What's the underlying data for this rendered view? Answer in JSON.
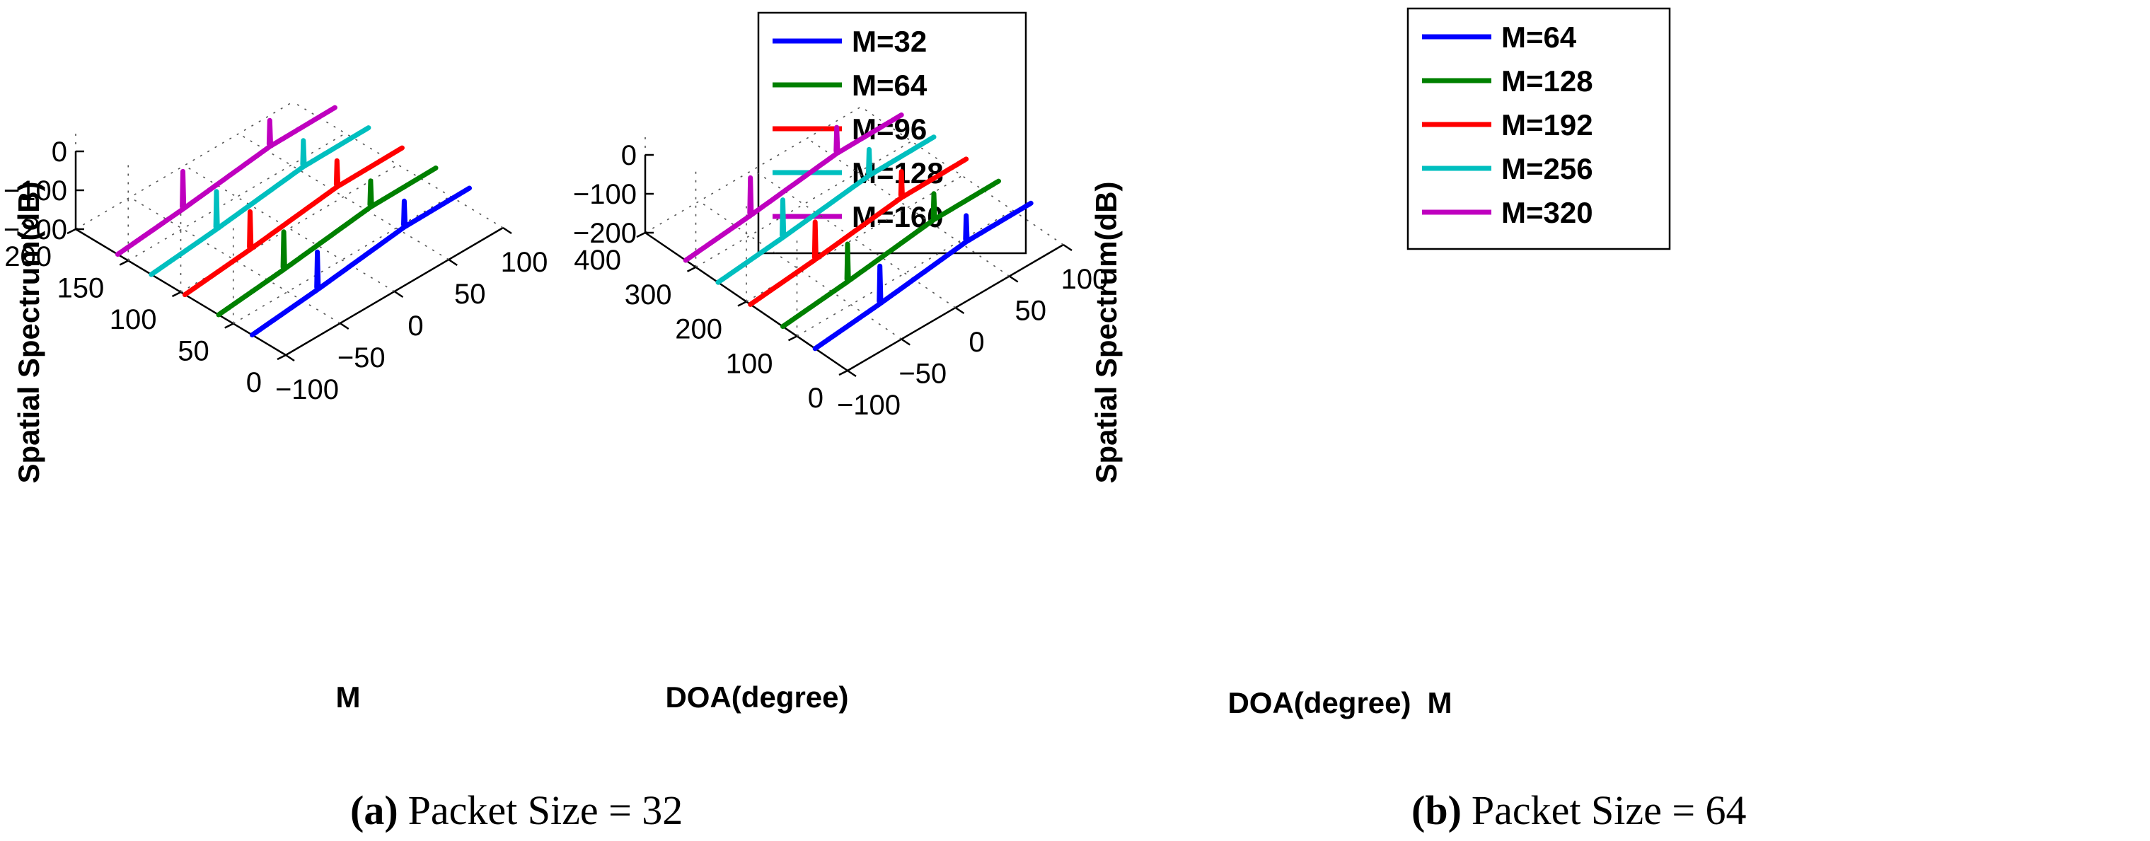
{
  "chart_data": [
    {
      "type": "line",
      "panel_letter": "(a)",
      "caption": "Packet Size = 32",
      "title": "",
      "xlabel": "DOA(degree)",
      "ylabel": "M",
      "zlabel": "Spatial Spectrum(dB)",
      "xlim": [
        -100,
        100
      ],
      "ylim": [
        0,
        200
      ],
      "zlim": [
        -200,
        0
      ],
      "x_ticks": [
        -100,
        -50,
        0,
        50,
        100
      ],
      "x_tick_labels": [
        "−100",
        "−50",
        "0",
        "50",
        "100"
      ],
      "y_ticks": [
        0,
        50,
        100,
        150,
        200
      ],
      "y_tick_labels": [
        "0",
        "50",
        "100",
        "150",
        "200"
      ],
      "z_ticks": [
        -200,
        -100,
        0
      ],
      "z_tick_labels": [
        "−200",
        "−100",
        "0"
      ],
      "legend_position": "top-right",
      "peaks_deg": [
        -40,
        40
      ],
      "series": [
        {
          "name": "M=32",
          "m": 32,
          "color": "#0000ff",
          "floor_db": -200,
          "end_db": -150,
          "peak_db": -85
        },
        {
          "name": "M=64",
          "m": 64,
          "color": "#008000",
          "floor_db": -200,
          "end_db": -150,
          "peak_db": -85
        },
        {
          "name": "M=96",
          "m": 96,
          "color": "#ff0000",
          "floor_db": -200,
          "end_db": -150,
          "peak_db": -85
        },
        {
          "name": "M=128",
          "m": 128,
          "color": "#00bfbf",
          "floor_db": -200,
          "end_db": -150,
          "peak_db": -85
        },
        {
          "name": "M=160",
          "m": 160,
          "color": "#bf00bf",
          "floor_db": -200,
          "end_db": -150,
          "peak_db": -85
        }
      ]
    },
    {
      "type": "line",
      "panel_letter": "(b)",
      "caption": "Packet Size = 64",
      "title": "",
      "xlabel": "DOA(degree)",
      "ylabel": "M",
      "zlabel": "Spatial Spectrum(dB)",
      "xlim": [
        -100,
        100
      ],
      "ylim": [
        0,
        400
      ],
      "zlim": [
        -200,
        0
      ],
      "x_ticks": [
        -100,
        -50,
        0,
        50,
        100
      ],
      "x_tick_labels": [
        "−100",
        "−50",
        "0",
        "50",
        "100"
      ],
      "y_ticks": [
        0,
        100,
        200,
        300,
        400
      ],
      "y_tick_labels": [
        "0",
        "100",
        "200",
        "300",
        "400"
      ],
      "z_ticks": [
        -200,
        -100,
        0
      ],
      "z_tick_labels": [
        "−200",
        "−100",
        "0"
      ],
      "legend_position": "top-right",
      "peaks_deg": [
        -40,
        40
      ],
      "series": [
        {
          "name": "M=64",
          "m": 64,
          "color": "#0000ff",
          "floor_db": -200,
          "end_db": -150,
          "peak_db": -85
        },
        {
          "name": "M=128",
          "m": 128,
          "color": "#008000",
          "floor_db": -200,
          "end_db": -150,
          "peak_db": -85
        },
        {
          "name": "M=192",
          "m": 192,
          "color": "#ff0000",
          "floor_db": -200,
          "end_db": -150,
          "peak_db": -85
        },
        {
          "name": "M=256",
          "m": 256,
          "color": "#00bfbf",
          "floor_db": -200,
          "end_db": -150,
          "peak_db": -85
        },
        {
          "name": "M=320",
          "m": 320,
          "color": "#bf00bf",
          "floor_db": -200,
          "end_db": -150,
          "peak_db": -85
        }
      ]
    }
  ]
}
